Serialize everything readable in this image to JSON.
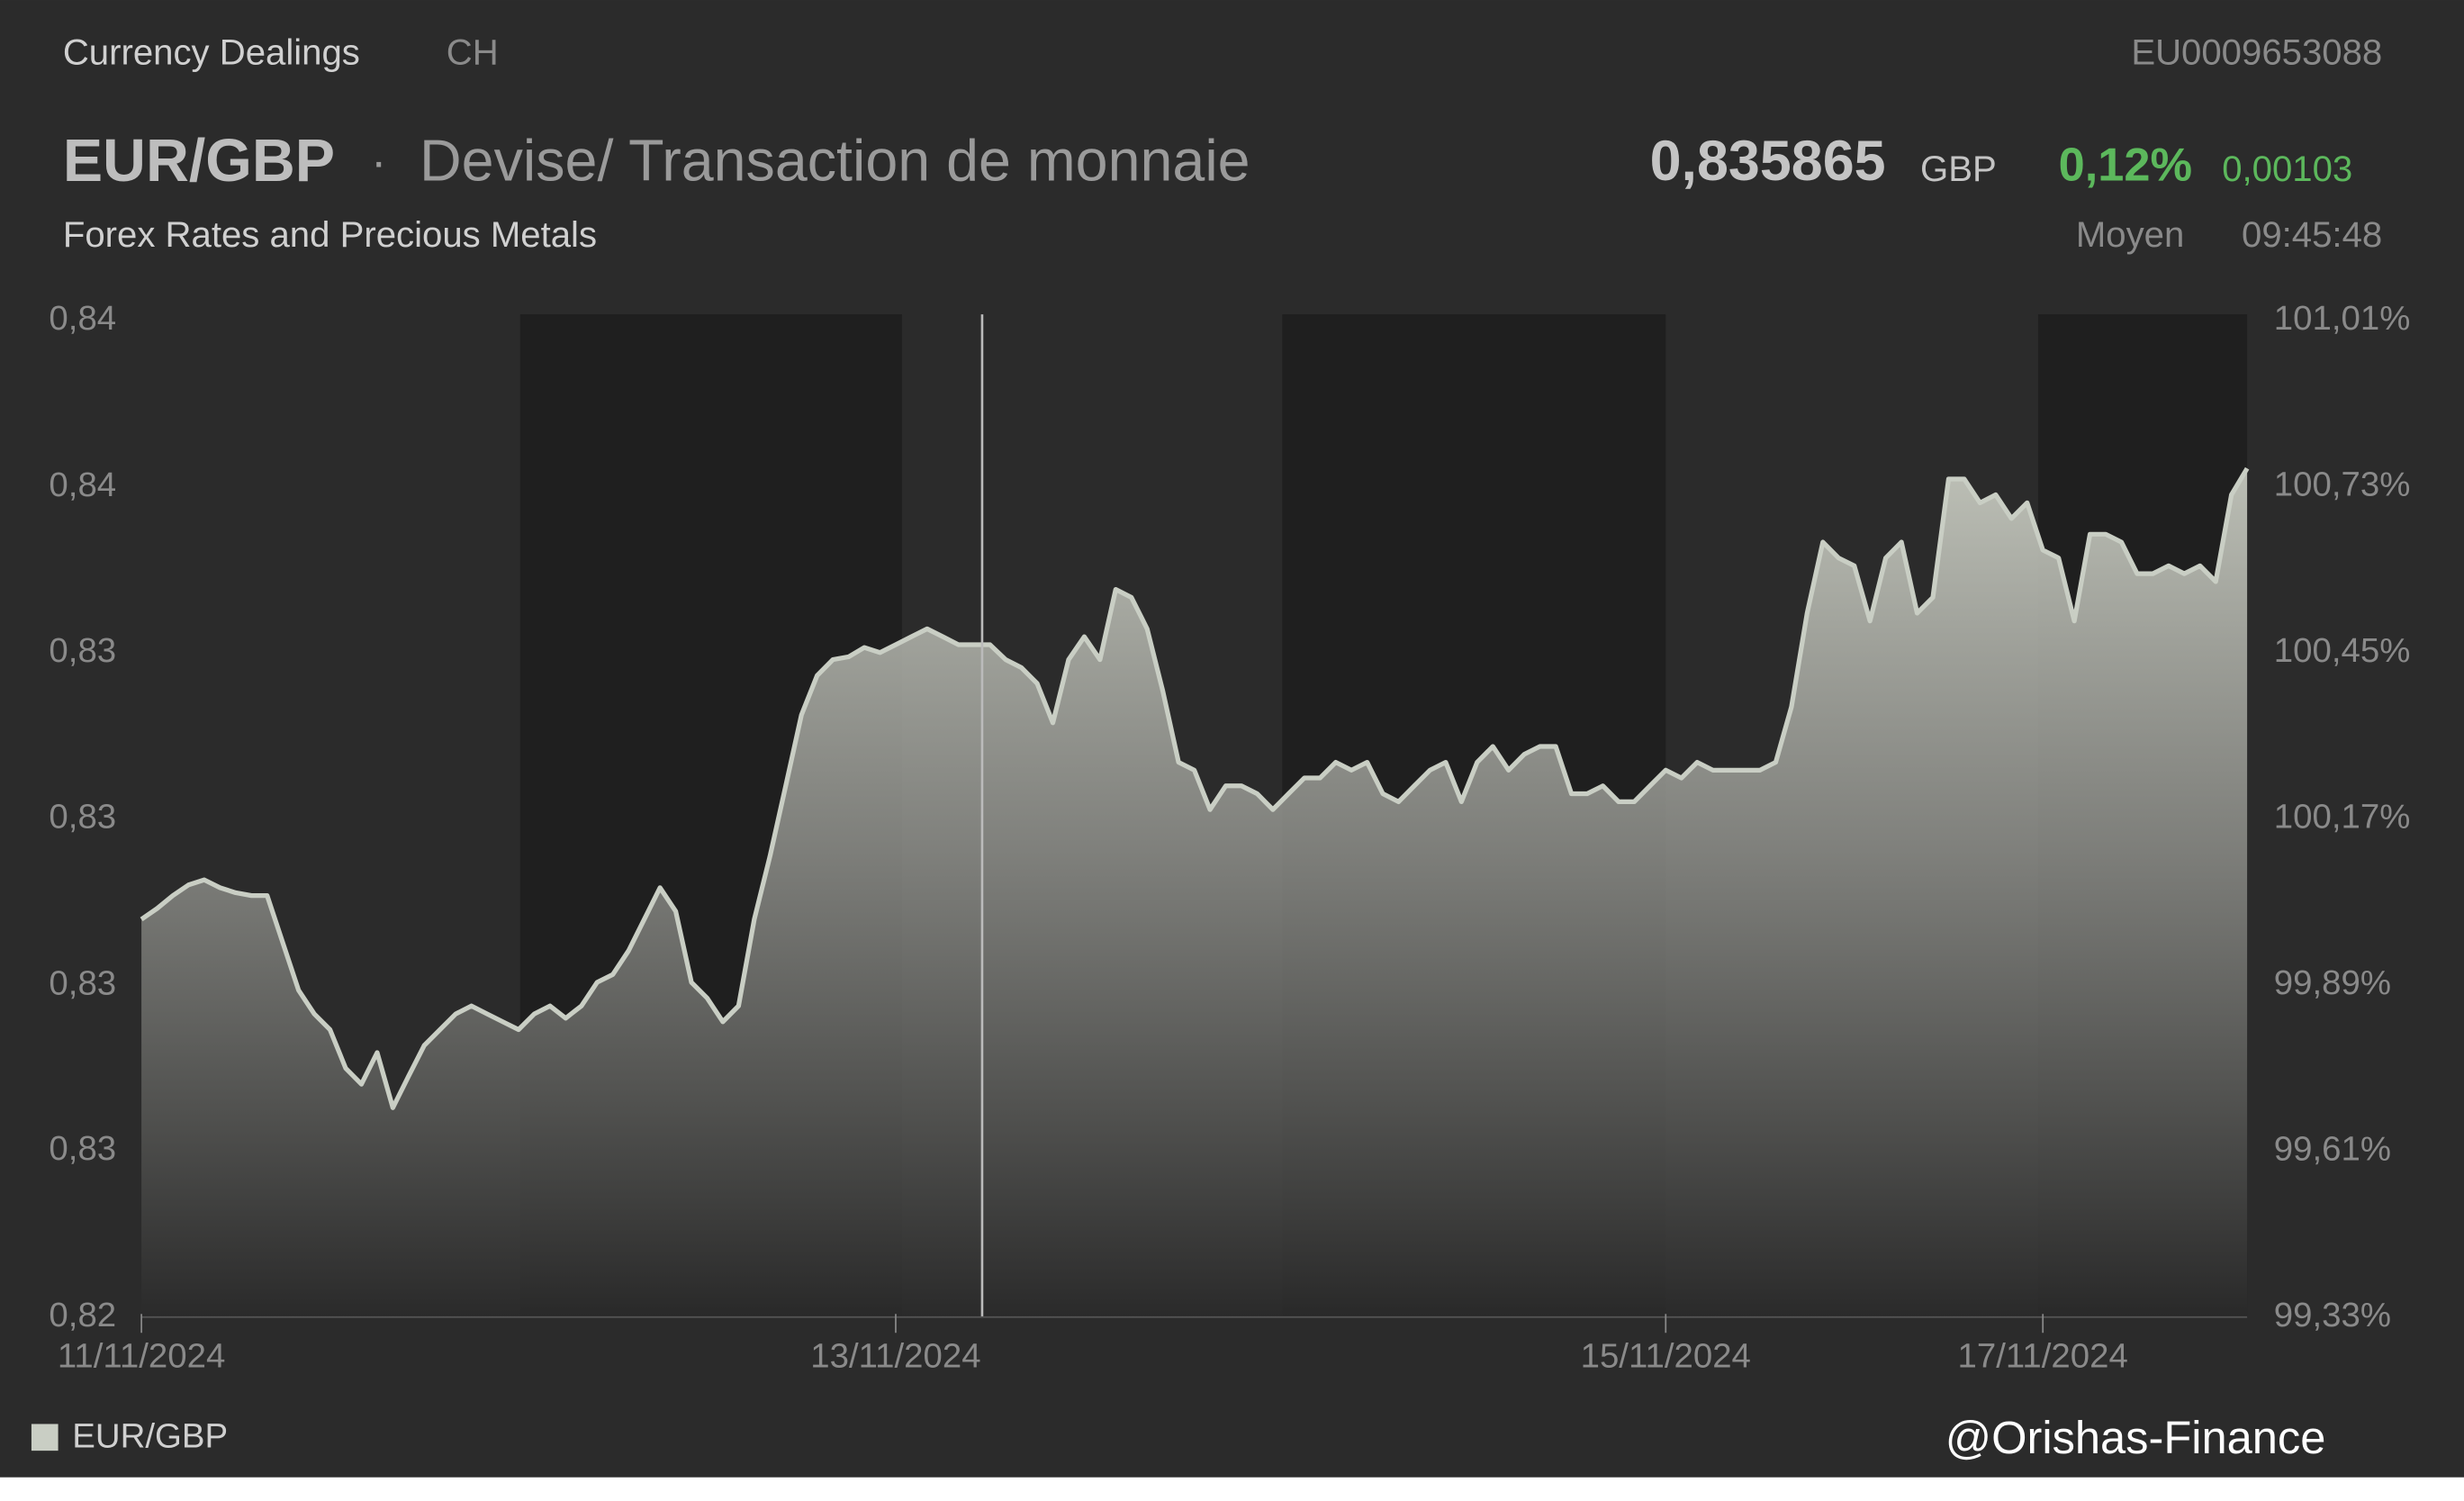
{
  "header": {
    "source": "Currency Dealings",
    "country": "CH",
    "isin": "EU0009653088",
    "symbol": "EUR/GBP",
    "separator": "·",
    "description": "Devise/ Transaction de monnaie",
    "subtitle": "Forex Rates and Precious Metals",
    "price": "0,835865",
    "currency": "GBP",
    "change_pct": "0,12%",
    "change_abs": "0,00103",
    "price_type": "Moyen",
    "time": "09:45:48",
    "watermark": "@Orishas-Finance"
  },
  "chart_data": {
    "type": "area",
    "categories": [
      "11/11/2024",
      null,
      null,
      null,
      null,
      null,
      null,
      null,
      null,
      null,
      null,
      null,
      null,
      null,
      null,
      null,
      null,
      null,
      null,
      null,
      null,
      null,
      null,
      null,
      null,
      null,
      null,
      null,
      null,
      null,
      null,
      null,
      null,
      null,
      null,
      null,
      null,
      null,
      null,
      null,
      null,
      null,
      null,
      null,
      null,
      null,
      null,
      null,
      "13/11/2024",
      null,
      null,
      null,
      null,
      null,
      null,
      null,
      null,
      null,
      null,
      null,
      null,
      null,
      null,
      null,
      null,
      null,
      null,
      null,
      null,
      null,
      null,
      null,
      null,
      null,
      null,
      null,
      null,
      null,
      null,
      null,
      null,
      null,
      null,
      null,
      null,
      null,
      null,
      null,
      null,
      null,
      null,
      null,
      null,
      null,
      null,
      null,
      null,
      "15/11/2024",
      null,
      null,
      null,
      null,
      null,
      null,
      null,
      null,
      null,
      null,
      null,
      null,
      null,
      null,
      null,
      null,
      null,
      null,
      null,
      null,
      null,
      null,
      null,
      "17/11/2024",
      null,
      null,
      null,
      null,
      null,
      null,
      null,
      null,
      null,
      null,
      null,
      null,
      null
    ],
    "series": [
      {
        "name": "EUR/GBP",
        "color": "#c9cec4",
        "values": [
          0.82965,
          0.8298,
          0.82998,
          0.83013,
          0.8302,
          0.83009,
          0.83002,
          0.82998,
          0.82998,
          0.82932,
          0.82866,
          0.82833,
          0.82811,
          0.82757,
          0.82735,
          0.82779,
          0.82702,
          0.82746,
          0.82789,
          0.82811,
          0.82833,
          0.82844,
          0.82833,
          0.82822,
          0.82811,
          0.82833,
          0.82844,
          0.82827,
          0.82844,
          0.82877,
          0.82888,
          0.82921,
          0.82965,
          0.83009,
          0.82976,
          0.82877,
          0.82855,
          0.82822,
          0.82844,
          0.82965,
          0.83053,
          0.83151,
          0.8325,
          0.83305,
          0.83327,
          0.83331,
          0.83344,
          0.83337,
          0.83348,
          0.83359,
          0.8337,
          0.83359,
          0.83348,
          0.83348,
          0.83348,
          0.83327,
          0.83316,
          0.83294,
          0.83239,
          0.83327,
          0.83359,
          0.83327,
          0.83425,
          0.83414,
          0.8337,
          0.83283,
          0.83184,
          0.83173,
          0.83118,
          0.83151,
          0.83151,
          0.8314,
          0.83118,
          0.8314,
          0.83162,
          0.83162,
          0.83184,
          0.83173,
          0.83184,
          0.8314,
          0.83129,
          0.83151,
          0.83173,
          0.83184,
          0.83129,
          0.83184,
          0.83206,
          0.83173,
          0.83195,
          0.83206,
          0.83206,
          0.8314,
          0.8314,
          0.83151,
          0.83129,
          0.83129,
          0.83151,
          0.83173,
          0.83162,
          0.83184,
          0.83173,
          0.83173,
          0.83173,
          0.83173,
          0.83184,
          0.83261,
          0.83392,
          0.83491,
          0.83469,
          0.83458,
          0.83381,
          0.83469,
          0.83491,
          0.83392,
          0.83414,
          0.83579,
          0.83579,
          0.83546,
          0.83557,
          0.83524,
          0.83546,
          0.8348,
          0.83469,
          0.83381,
          0.83502,
          0.83502,
          0.83491,
          0.83447,
          0.83447,
          0.83458,
          0.83447,
          0.83458,
          0.83436,
          0.83557,
          0.83594
        ]
      }
    ],
    "ylim": [
      0.8241,
      0.838
    ],
    "yticks": [
      {
        "value": 0.8241,
        "label": "0,82"
      },
      {
        "value": 0.82642,
        "label": "0,83"
      },
      {
        "value": 0.82873,
        "label": "0,83"
      },
      {
        "value": 0.83105,
        "label": "0,83"
      },
      {
        "value": 0.83337,
        "label": "0,83"
      },
      {
        "value": 0.83568,
        "label": "0,84"
      },
      {
        "value": 0.838,
        "label": "0,84"
      }
    ],
    "y2lim": [
      99.33,
      101.01
    ],
    "y2ticks": [
      {
        "value": 99.33,
        "label": "99,33%"
      },
      {
        "value": 99.61,
        "label": "99,61%"
      },
      {
        "value": 99.89,
        "label": "99,89%"
      },
      {
        "value": 100.17,
        "label": "100,17%"
      },
      {
        "value": 100.45,
        "label": "100,45%"
      },
      {
        "value": 100.73,
        "label": "100,73%"
      },
      {
        "value": 101.01,
        "label": "101,01%"
      }
    ],
    "grid": false,
    "legend": "bottom-left"
  }
}
